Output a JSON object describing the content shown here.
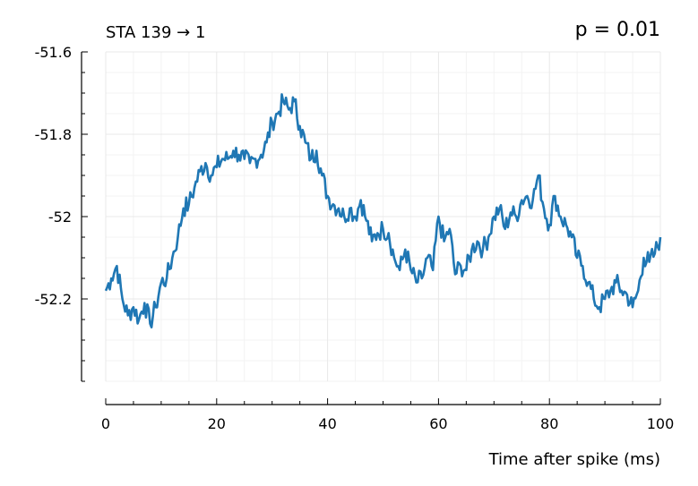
{
  "chart_data": {
    "type": "line",
    "title": "STA 139 → 1",
    "annotation": "p = 0.01",
    "xlabel": "Time after spike (ms)",
    "ylabel": "",
    "xlim": [
      0,
      100
    ],
    "ylim": [
      -52.4,
      -51.6
    ],
    "xticks": [
      0,
      20,
      40,
      60,
      80,
      100
    ],
    "xtick_labels": [
      "0",
      "20",
      "40",
      "60",
      "80",
      "100"
    ],
    "yticks": [
      -51.6,
      -51.8,
      -52,
      -52.2
    ],
    "ytick_labels": [
      "-51.6",
      "-51.8",
      "-52",
      "-52.2"
    ],
    "grid": true,
    "series": [
      {
        "color": "#1f77b4",
        "x": [
          0,
          1,
          2,
          3,
          4,
          5,
          6,
          7,
          8,
          9,
          10,
          11,
          12,
          13,
          14,
          15,
          16,
          17,
          18,
          19,
          20,
          21,
          22,
          23,
          24,
          25,
          26,
          27,
          28,
          29,
          30,
          31,
          32,
          33,
          34,
          35,
          36,
          37,
          38,
          39,
          40,
          41,
          42,
          43,
          44,
          45,
          46,
          47,
          48,
          49,
          50,
          51,
          52,
          53,
          54,
          55,
          56,
          57,
          58,
          59,
          60,
          61,
          62,
          63,
          64,
          65,
          66,
          67,
          68,
          69,
          70,
          71,
          72,
          73,
          74,
          75,
          76,
          77,
          78,
          79,
          80,
          81,
          82,
          83,
          84,
          85,
          86,
          87,
          88,
          89,
          90,
          91,
          92,
          93,
          94,
          95,
          96,
          97,
          98,
          99,
          100
        ],
        "values": [
          -52.18,
          -52.15,
          -52.12,
          -52.2,
          -52.24,
          -52.22,
          -52.25,
          -52.21,
          -52.26,
          -52.22,
          -52.16,
          -52.15,
          -52.1,
          -52.05,
          -51.98,
          -51.97,
          -51.93,
          -51.89,
          -51.87,
          -51.9,
          -51.88,
          -51.86,
          -51.86,
          -51.84,
          -51.85,
          -51.86,
          -51.87,
          -51.86,
          -51.85,
          -51.82,
          -51.77,
          -51.75,
          -51.72,
          -51.74,
          -51.72,
          -51.78,
          -51.82,
          -51.86,
          -51.84,
          -51.9,
          -51.95,
          -51.97,
          -51.98,
          -52.0,
          -51.98,
          -52.0,
          -51.96,
          -52.01,
          -52.06,
          -52.04,
          -52.03,
          -52.04,
          -52.1,
          -52.13,
          -52.08,
          -52.13,
          -52.16,
          -52.15,
          -52.1,
          -52.13,
          -52.0,
          -52.06,
          -52.03,
          -52.14,
          -52.12,
          -52.13,
          -52.08,
          -52.06,
          -52.08,
          -52.05,
          -52.0,
          -51.98,
          -52.03,
          -51.99,
          -52.0,
          -51.96,
          -51.95,
          -51.96,
          -51.9,
          -51.98,
          -52.02,
          -51.95,
          -52.0,
          -52.02,
          -52.05,
          -52.1,
          -52.12,
          -52.16,
          -52.2,
          -52.22,
          -52.2,
          -52.18,
          -52.16,
          -52.18,
          -52.19,
          -52.22,
          -52.18,
          -52.1,
          -52.11,
          -52.09,
          -52.05
        ]
      }
    ]
  }
}
